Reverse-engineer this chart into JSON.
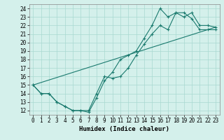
{
  "xlabel": "Humidex (Indice chaleur)",
  "ylabel": "",
  "xlim": [
    -0.5,
    23.5
  ],
  "ylim": [
    11.5,
    24.5
  ],
  "xticks": [
    0,
    1,
    2,
    3,
    4,
    5,
    6,
    7,
    8,
    9,
    10,
    11,
    12,
    13,
    14,
    15,
    16,
    17,
    18,
    19,
    20,
    21,
    22,
    23
  ],
  "yticks": [
    12,
    13,
    14,
    15,
    16,
    17,
    18,
    19,
    20,
    21,
    22,
    23,
    24
  ],
  "line_color": "#1a7a6e",
  "bg_color": "#d4f0eb",
  "grid_color": "#a8d8d0",
  "line1_x": [
    0,
    1,
    2,
    3,
    4,
    5,
    6,
    7,
    8,
    9,
    10,
    11,
    12,
    13,
    14,
    15,
    16,
    17,
    18,
    19,
    20,
    21,
    22,
    23
  ],
  "line1_y": [
    15.0,
    14.0,
    14.0,
    13.0,
    12.5,
    12.0,
    12.0,
    12.0,
    14.0,
    16.0,
    15.8,
    16.0,
    17.0,
    18.5,
    19.8,
    21.0,
    22.0,
    21.5,
    23.5,
    23.0,
    23.5,
    22.0,
    22.0,
    21.8
  ],
  "line2_x": [
    0,
    1,
    2,
    3,
    4,
    5,
    6,
    7,
    8,
    9,
    10,
    11,
    12,
    13,
    14,
    15,
    16,
    17,
    18,
    19,
    20,
    21,
    22,
    23
  ],
  "line2_y": [
    15.0,
    14.0,
    14.0,
    13.0,
    12.5,
    12.0,
    12.0,
    11.8,
    13.5,
    15.5,
    16.5,
    18.0,
    18.5,
    19.0,
    20.5,
    22.0,
    24.0,
    23.0,
    23.5,
    23.5,
    22.8,
    21.5,
    21.5,
    21.5
  ],
  "line3_x": [
    0,
    23
  ],
  "line3_y": [
    15.0,
    21.8
  ],
  "tick_fontsize": 5.5,
  "xlabel_fontsize": 6.5
}
